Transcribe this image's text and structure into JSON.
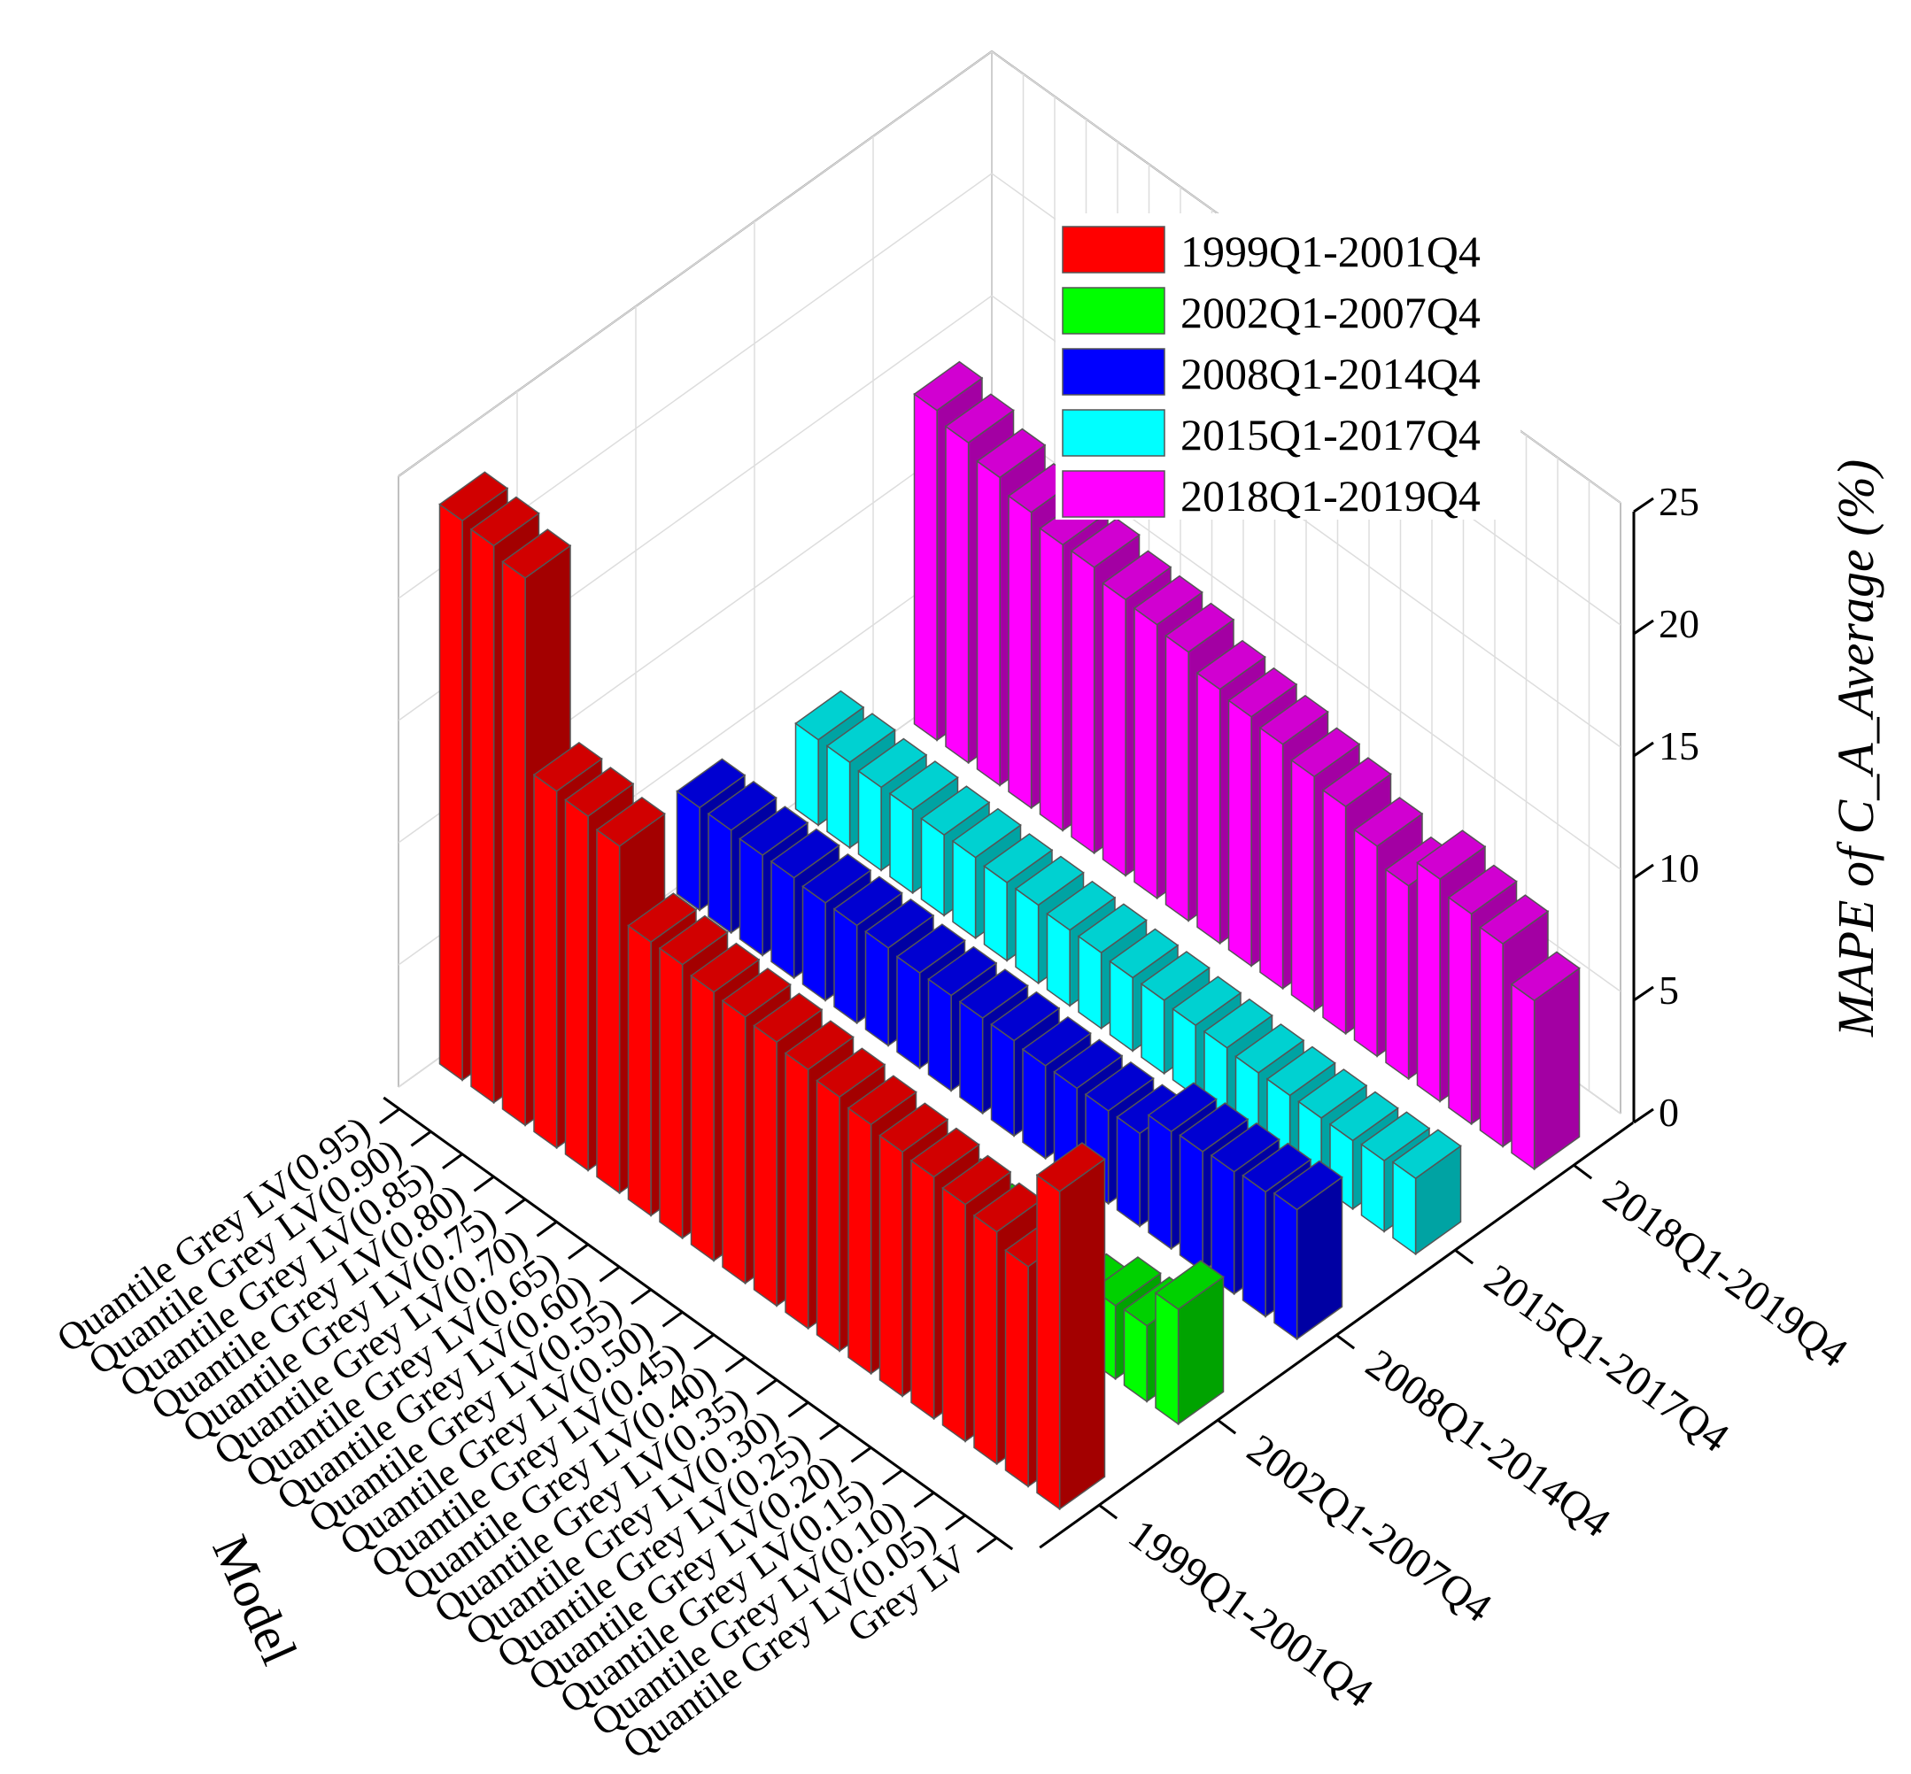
{
  "chart_data": {
    "type": "bar",
    "title": "",
    "xlabel": "Model",
    "ylabel": "",
    "zlabel": "MAPE of C_A_Average (%)",
    "zlim": [
      0,
      25
    ],
    "z_ticks": [
      "0",
      "5",
      "10",
      "15",
      "20",
      "25"
    ],
    "grid": true,
    "legend_position": "top-right",
    "categories": [
      "Quantile Grey LV(0.95)",
      "Quantile Grey LV(0.90)",
      "Quantile Grey LV(0.85)",
      "Quantile Grey LV(0.80)",
      "Quantile Grey LV(0.75)",
      "Quantile Grey LV(0.70)",
      "Quantile Grey LV(0.65)",
      "Quantile Grey LV(0.60)",
      "Quantile Grey LV(0.55)",
      "Quantile Grey LV(0.50)",
      "Quantile Grey LV(0.45)",
      "Quantile Grey LV(0.40)",
      "Quantile Grey LV(0.35)",
      "Quantile Grey LV(0.30)",
      "Quantile Grey LV(0.25)",
      "Quantile Grey LV(0.20)",
      "Quantile Grey LV(0.15)",
      "Quantile Grey LV(0.10)",
      "Quantile Grey LV(0.05)",
      "Grey LV"
    ],
    "series": [
      {
        "name": "1999Q1-2001Q4",
        "color": "#ff0000",
        "values": [
          22.9,
          22.8,
          22.4,
          14.6,
          14.5,
          14.2,
          11.2,
          11.2,
          11.0,
          10.9,
          10.8,
          10.6,
          10.4,
          10.2,
          10.0,
          9.9,
          9.7,
          9.5,
          9.0,
          13.0
        ]
      },
      {
        "name": "2002Q1-2007Q4",
        "color": "#00ff00",
        "values": [
          3.0,
          2.9,
          2.9,
          2.8,
          2.8,
          2.7,
          2.7,
          2.6,
          2.6,
          2.5,
          2.5,
          2.4,
          2.4,
          2.3,
          2.3,
          2.2,
          2.2,
          3.0,
          3.1,
          4.7
        ]
      },
      {
        "name": "2008Q1-2014Q4",
        "color": "#0000ff",
        "values": [
          4.2,
          4.2,
          4.1,
          4.1,
          4.0,
          4.0,
          4.0,
          3.9,
          3.9,
          3.9,
          3.9,
          3.8,
          3.8,
          3.8,
          3.8,
          4.8,
          4.9,
          5.0,
          5.1,
          5.3
        ]
      },
      {
        "name": "2015Q1-2017Q4",
        "color": "#00ffff",
        "values": [
          3.5,
          3.5,
          3.4,
          3.4,
          3.3,
          3.3,
          3.2,
          3.2,
          3.1,
          3.1,
          3.0,
          3.0,
          2.9,
          2.9,
          2.8,
          2.8,
          2.8,
          2.8,
          2.9,
          3.1
        ]
      },
      {
        "name": "2018Q1-2019Q4",
        "color": "#ff00ff",
        "values": [
          13.5,
          13.1,
          12.6,
          12.1,
          11.7,
          11.7,
          11.3,
          11.2,
          11.0,
          10.4,
          10.2,
          10.0,
          9.6,
          9.3,
          8.6,
          7.9,
          9.1,
          8.6,
          8.3,
          6.9
        ]
      }
    ]
  }
}
